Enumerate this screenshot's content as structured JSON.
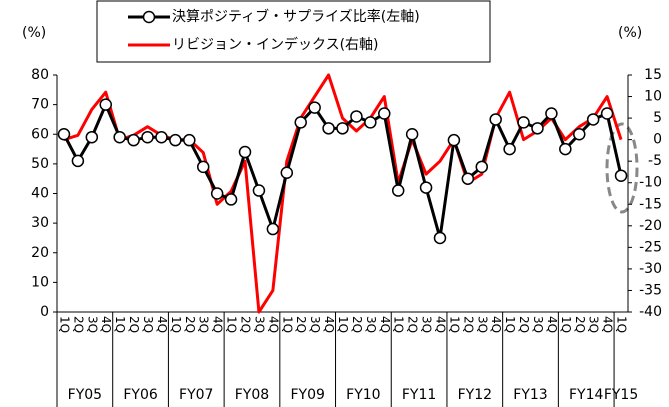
{
  "chart_data": {
    "type": "line",
    "y_unit_label": "(%)",
    "y2_unit_label": "(%)",
    "categories": [
      "1Q",
      "2Q",
      "3Q",
      "4Q",
      "1Q",
      "2Q",
      "3Q",
      "4Q",
      "1Q",
      "2Q",
      "3Q",
      "4Q",
      "1Q",
      "2Q",
      "3Q",
      "4Q",
      "1Q",
      "2Q",
      "3Q",
      "4Q",
      "1Q",
      "2Q",
      "3Q",
      "4Q",
      "1Q",
      "2Q",
      "3Q",
      "4Q",
      "1Q",
      "2Q",
      "3Q",
      "4Q",
      "1Q",
      "2Q",
      "3Q",
      "4Q",
      "1Q",
      "2Q",
      "3Q",
      "4Q",
      "1Q"
    ],
    "fiscal_years": [
      "FY05",
      "FY06",
      "FY07",
      "FY08",
      "FY09",
      "FY10",
      "FY11",
      "FY12",
      "FY13",
      "FY14",
      "FY15"
    ],
    "series": [
      {
        "name": "決算ポジティブ・サプライズ比率(左軸)",
        "color": "#000000",
        "axis": "y",
        "values": [
          60,
          51,
          59,
          70,
          59,
          58,
          59,
          59,
          58,
          58,
          49,
          40,
          38,
          54,
          41,
          28,
          47,
          64,
          69,
          62,
          62,
          66,
          64,
          67,
          41,
          60,
          42,
          25,
          58,
          45,
          49,
          65,
          55,
          64,
          62,
          67,
          55,
          60,
          65,
          67,
          46
        ]
      },
      {
        "name": "リビジョン・インデックス(右軸)",
        "color": "#ff0000",
        "axis": "y2",
        "values": [
          0,
          1,
          7,
          11,
          0,
          1,
          3,
          1,
          0,
          0,
          -3,
          -15,
          -12,
          -5,
          -40,
          -35,
          -5,
          5,
          10,
          15,
          5,
          2,
          5,
          10,
          -10,
          0,
          -8,
          -5,
          0,
          -10,
          -8,
          5,
          11,
          0,
          2,
          5,
          0,
          3,
          5,
          10,
          0
        ]
      }
    ],
    "ylim": [
      0,
      80
    ],
    "yticks": [
      0,
      10,
      20,
      30,
      40,
      50,
      60,
      70,
      80
    ],
    "y2lim": [
      -40,
      15
    ],
    "y2ticks": [
      -40,
      -35,
      -30,
      -25,
      -20,
      -15,
      -10,
      -5,
      0,
      5,
      10,
      15
    ]
  }
}
